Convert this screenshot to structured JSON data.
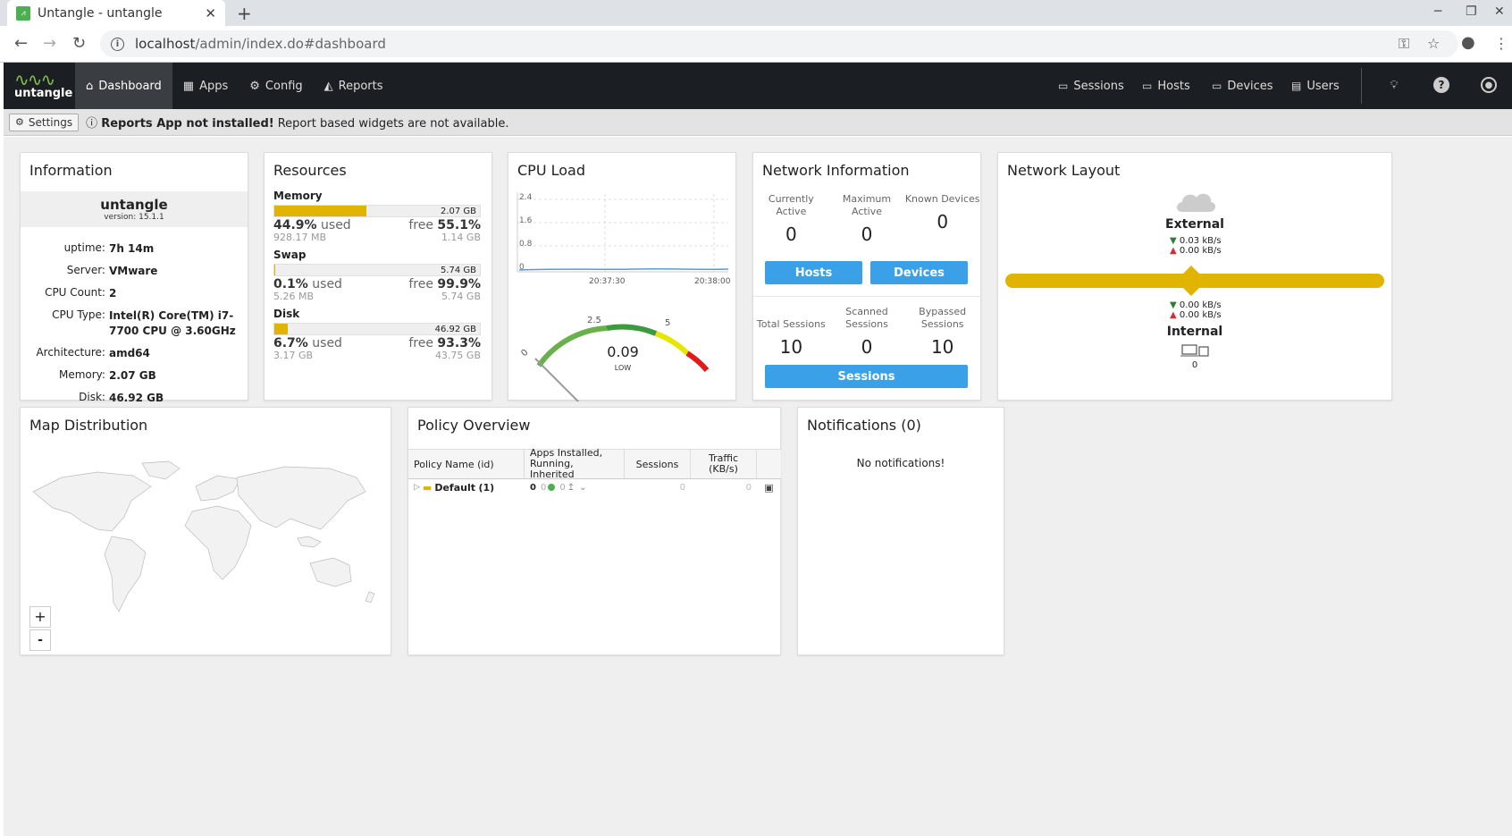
{
  "browser": {
    "tab_title": "Untangle - untangle",
    "url_host": "localhost",
    "url_path": "/admin/index.do#dashboard"
  },
  "nav": {
    "logo_text": "untangle",
    "items": [
      {
        "label": "Dashboard",
        "icon": "home-icon",
        "active": true
      },
      {
        "label": "Apps",
        "icon": "grid-icon"
      },
      {
        "label": "Config",
        "icon": "gear-icon"
      },
      {
        "label": "Reports",
        "icon": "area-chart-icon"
      }
    ],
    "right_items": [
      {
        "label": "Sessions",
        "icon": "sessions-icon"
      },
      {
        "label": "Hosts",
        "icon": "hosts-icon"
      },
      {
        "label": "Devices",
        "icon": "devices-icon"
      },
      {
        "label": "Users",
        "icon": "users-icon"
      }
    ]
  },
  "notice": {
    "settings_label": "Settings",
    "bold": "Reports App not installed!",
    "text": "Report based widgets are not available."
  },
  "information": {
    "title": "Information",
    "name": "untangle",
    "version": "version: 15.1.1",
    "rows": [
      {
        "k": "uptime:",
        "v": "7h 14m"
      },
      {
        "k": "Server:",
        "v": "VMware"
      },
      {
        "k": "CPU Count:",
        "v": "2"
      },
      {
        "k": "CPU Type:",
        "v": "Intel(R) Core(TM) i7-7700 CPU @ 3.60GHz"
      },
      {
        "k": "Architecture:",
        "v": "amd64"
      },
      {
        "k": "Memory:",
        "v": "2.07 GB"
      },
      {
        "k": "Disk:",
        "v": "46.92 GB"
      }
    ]
  },
  "resources": {
    "title": "Resources",
    "items": [
      {
        "label": "Memory",
        "total": "2.07 GB",
        "used_pct": "44.9%",
        "used_word": "used",
        "free_word": "free",
        "free_pct": "55.1%",
        "used_amt": "928.17 MB",
        "free_amt": "1.14 GB",
        "fill": 0.449
      },
      {
        "label": "Swap",
        "total": "5.74 GB",
        "used_pct": "0.1%",
        "used_word": "used",
        "free_word": "free",
        "free_pct": "99.9%",
        "used_amt": "5.26 MB",
        "free_amt": "5.74 GB",
        "fill": 0.001
      },
      {
        "label": "Disk",
        "total": "46.92 GB",
        "used_pct": "6.7%",
        "used_word": "used",
        "free_word": "free",
        "free_pct": "93.3%",
        "used_amt": "3.17 GB",
        "free_amt": "43.75 GB",
        "fill": 0.067
      }
    ]
  },
  "cpu": {
    "title": "CPU Load",
    "y_ticks": [
      "2.4",
      "1.6",
      "0.8",
      "0"
    ],
    "x_ticks": [
      "20:37:30",
      "20:38:00"
    ],
    "gauge_ticks": [
      "0",
      "2.5",
      "5"
    ],
    "value": "0.09",
    "status": "LOW",
    "line_color": "#5b9bd5"
  },
  "network_info": {
    "title": "Network Information",
    "top": [
      {
        "label": "Currently Active",
        "value": "0"
      },
      {
        "label": "Maximum Active",
        "value": "0"
      },
      {
        "label": "Known Devices",
        "value": "0"
      }
    ],
    "hosts_btn": "Hosts",
    "devices_btn": "Devices",
    "bottom": [
      {
        "label": "Total Sessions",
        "value": "10"
      },
      {
        "label": "Scanned Sessions",
        "value": "0"
      },
      {
        "label": "Bypassed Sessions",
        "value": "10"
      }
    ],
    "sessions_btn": "Sessions"
  },
  "network_layout": {
    "title": "Network Layout",
    "external": "External",
    "ext_down": "0.03 kB/s",
    "ext_up": "0.00 kB/s",
    "int_down": "0.00 kB/s",
    "int_up": "0.00 kB/s",
    "internal": "Internal",
    "device_count": "0"
  },
  "map": {
    "title": "Map Distribution",
    "zoom_in": "+",
    "zoom_out": "-"
  },
  "policy": {
    "title": "Policy Overview",
    "headers": [
      "Policy Name (id)",
      "Apps Installed, Running, Inherited",
      "Sessions",
      "Traffic (KB/s)"
    ],
    "row": {
      "name": "Default",
      "id": "(1)",
      "installed": "0",
      "running": "0",
      "inherited": "0",
      "sessions": "0",
      "traffic": "0"
    }
  },
  "notifications": {
    "title": "Notifications (0)",
    "empty": "No notifications!"
  }
}
